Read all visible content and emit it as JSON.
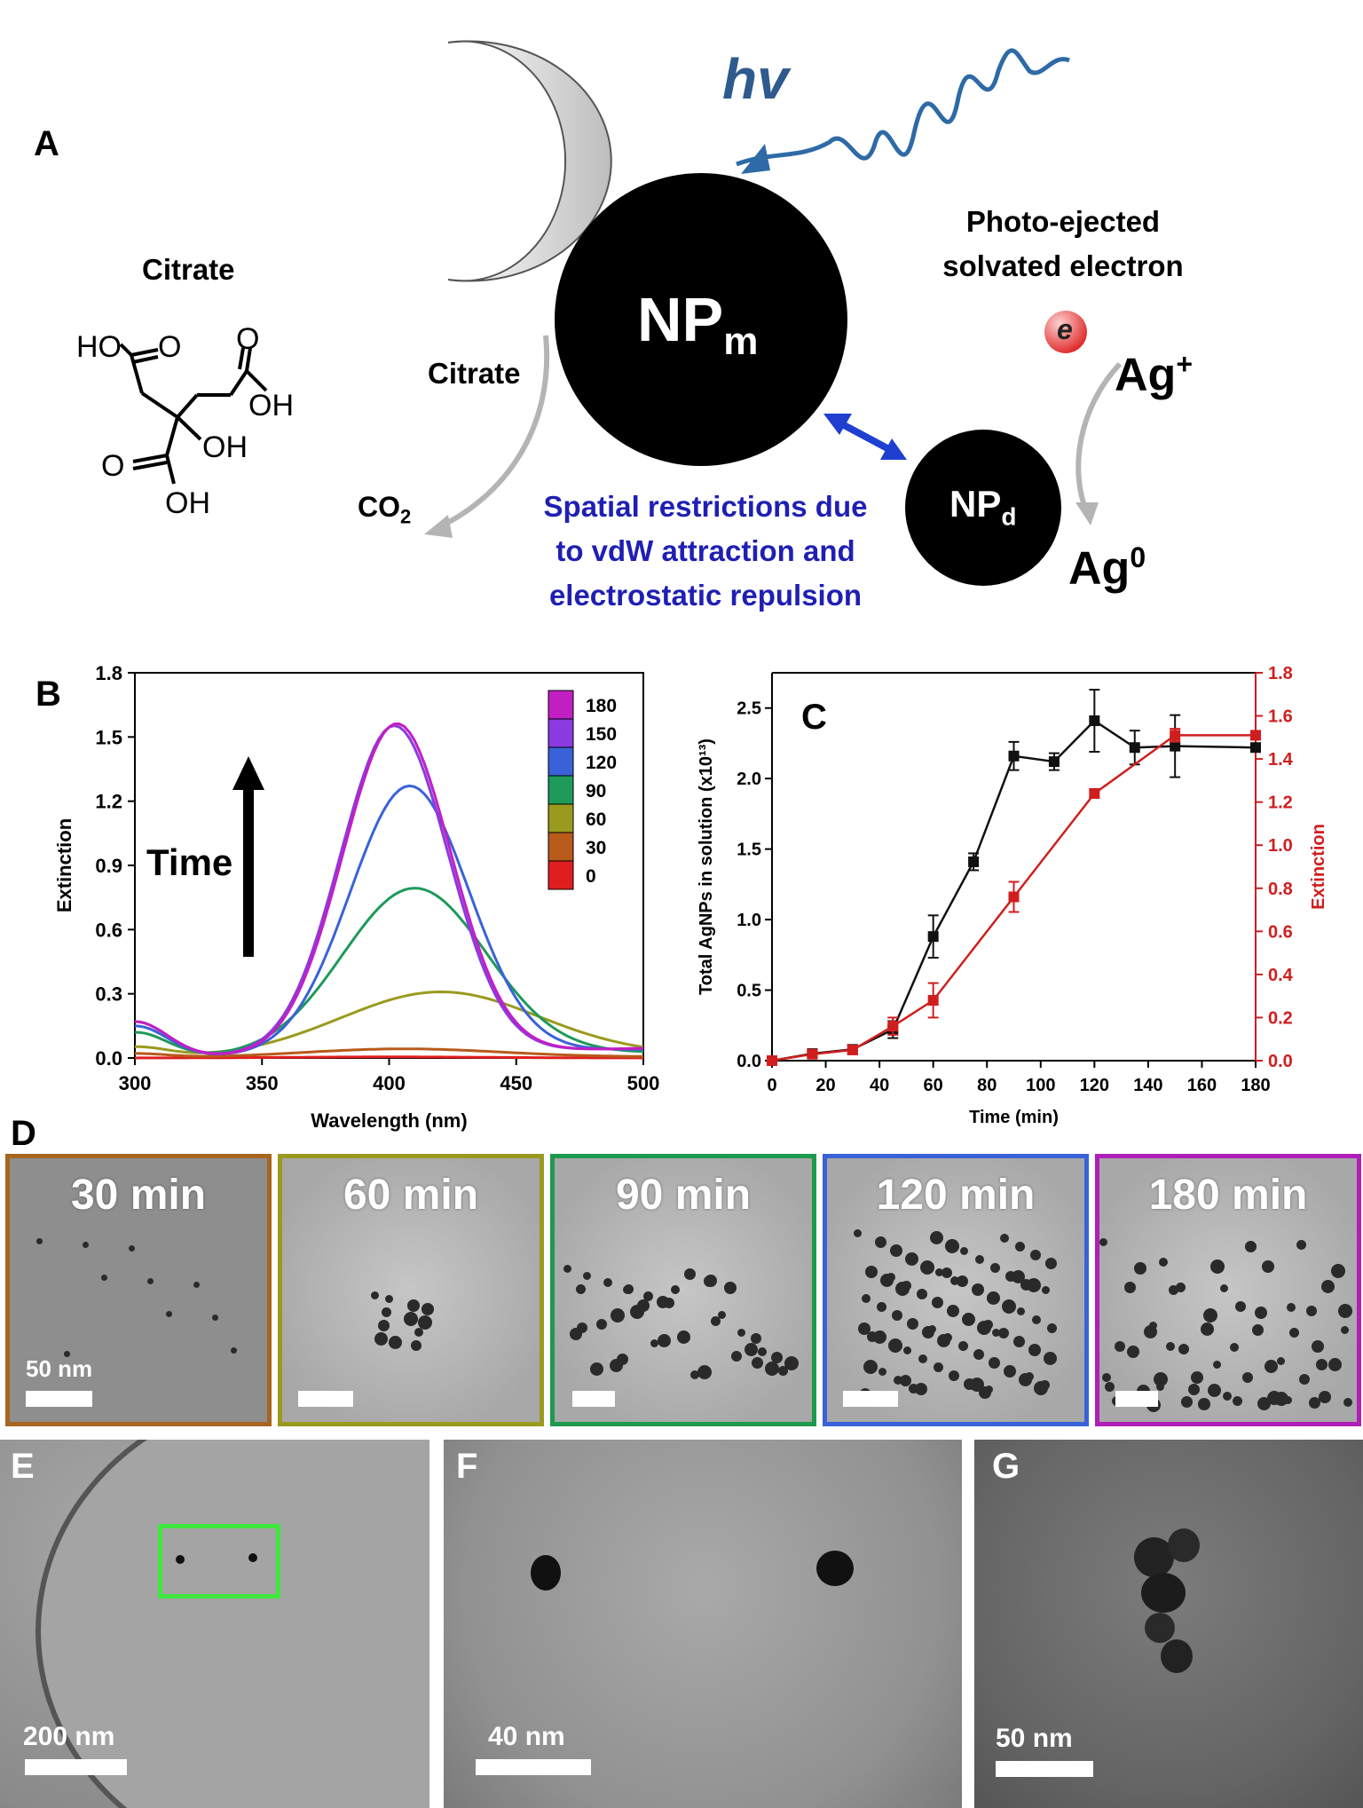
{
  "panelA": {
    "letter": "A",
    "hv": "hv",
    "citrate_title": "Citrate",
    "molecule_labels": {
      "ho_top": "HO",
      "o1": "O",
      "o2": "O",
      "oh_right": "OH",
      "oh_mid": "OH",
      "o_left": "O",
      "oh_bottom": "OH"
    },
    "np_m": "NP",
    "np_m_sub": "m",
    "np_d": "NP",
    "np_d_sub": "d",
    "photo_line1": "Photo-ejected",
    "photo_line2": "solvated electron",
    "electron": "e",
    "ag_plus": "Ag",
    "ag_plus_sup": "+",
    "ag_zero": "Ag",
    "ag_zero_sup": "0",
    "citrate_arrow": "Citrate",
    "co2": "CO",
    "co2_sub": "2",
    "restriction_line1": "Spatial restrictions due",
    "restriction_line2": "to vdW attraction and",
    "restriction_line3": "electrostatic repulsion",
    "colors": {
      "wave": "#2e6aa6",
      "restriction_text": "#1f1fb4",
      "double_arrow": "#1f3fd0",
      "electron": "#e84545"
    }
  },
  "panelB": {
    "letter": "B",
    "time_label": "Time"
  },
  "panelC": {
    "letter": "C"
  },
  "panelD": {
    "letter": "D",
    "tiles": [
      {
        "label": "30 min",
        "border": "#a8651e",
        "scale": "50 nm"
      },
      {
        "label": "60 min",
        "border": "#9a9a1e",
        "scale": ""
      },
      {
        "label": "90 min",
        "border": "#1e9a4e",
        "scale": ""
      },
      {
        "label": "120 min",
        "border": "#3a62d8",
        "scale": ""
      },
      {
        "label": "180 min",
        "border": "#b01eb8",
        "scale": ""
      }
    ]
  },
  "panelE": {
    "letter": "E",
    "scale": "200 nm"
  },
  "panelF": {
    "letter": "F",
    "scale": "40 nm"
  },
  "panelG": {
    "letter": "G",
    "scale": "50 nm"
  },
  "chart_data": [
    {
      "type": "line",
      "panel": "B",
      "xlabel": "Wavelength (nm)",
      "ylabel": "Extinction",
      "xlim": [
        300,
        500
      ],
      "ylim": [
        0,
        1.8
      ],
      "xticks": [
        "300",
        "350",
        "400",
        "450",
        "500"
      ],
      "yticks": [
        "0.0",
        "0.3",
        "0.6",
        "0.9",
        "1.2",
        "1.5",
        "1.8"
      ],
      "legend_title": "",
      "legend": [
        "180",
        "150",
        "120",
        "90",
        "60",
        "30",
        "0"
      ],
      "legend_colors": [
        "#c21fc2",
        "#8a3ae0",
        "#3a62d8",
        "#1e9a5a",
        "#9a9a1e",
        "#b85a1a",
        "#e01e1e"
      ],
      "series": [
        {
          "name": "0",
          "color": "#e01e1e",
          "peak": 0.005,
          "center": 400,
          "width": 55,
          "base300": 0.0,
          "min": 0.0
        },
        {
          "name": "30",
          "color": "#b85a1a",
          "peak": 0.04,
          "center": 405,
          "width": 55,
          "base300": 0.02,
          "min": 0.01
        },
        {
          "name": "60",
          "color": "#9a9a1e",
          "peak": 0.3,
          "center": 420,
          "width": 55,
          "base300": 0.05,
          "min": 0.03
        },
        {
          "name": "90",
          "color": "#1e9a5a",
          "peak": 0.78,
          "center": 410,
          "width": 40,
          "base300": 0.12,
          "min": 0.05
        },
        {
          "name": "120",
          "color": "#3a62d8",
          "peak": 1.25,
          "center": 408,
          "width": 33,
          "base300": 0.15,
          "min": 0.08
        },
        {
          "name": "150",
          "color": "#8a3ae0",
          "peak": 1.53,
          "center": 402,
          "width": 30,
          "base300": 0.17,
          "min": 0.09
        },
        {
          "name": "180",
          "color": "#c21fc2",
          "peak": 1.54,
          "center": 403,
          "width": 30,
          "base300": 0.17,
          "min": 0.09
        }
      ]
    },
    {
      "type": "line",
      "panel": "C",
      "xlabel": "Time (min)",
      "ylabel": "Total AgNPs in solution (x10¹³)",
      "y2label": "Extinction",
      "xlim": [
        0,
        180
      ],
      "ylim": [
        0,
        2.75
      ],
      "y2lim": [
        0,
        1.8
      ],
      "xticks": [
        "0",
        "20",
        "40",
        "60",
        "80",
        "100",
        "120",
        "140",
        "160",
        "180"
      ],
      "yticks": [
        "0.0",
        "0.5",
        "1.0",
        "1.5",
        "2.0",
        "2.5"
      ],
      "y2ticks": [
        "0.0",
        "0.2",
        "0.4",
        "0.6",
        "0.8",
        "1.0",
        "1.2",
        "1.4",
        "1.6",
        "1.8"
      ],
      "series": [
        {
          "name": "Total AgNPs",
          "axis": "left",
          "color": "#111111",
          "x": [
            0,
            15,
            30,
            45,
            60,
            75,
            90,
            105,
            120,
            135,
            150,
            180
          ],
          "y": [
            0.0,
            0.05,
            0.08,
            0.22,
            0.88,
            1.41,
            2.16,
            2.12,
            2.41,
            2.22,
            2.23,
            2.22
          ],
          "err": [
            0.0,
            0.02,
            0.03,
            0.06,
            0.15,
            0.06,
            0.1,
            0.06,
            0.22,
            0.12,
            0.22,
            0.0
          ]
        },
        {
          "name": "Extinction",
          "axis": "right",
          "color": "#d01e1e",
          "x": [
            0,
            15,
            30,
            45,
            60,
            90,
            120,
            150,
            180
          ],
          "y": [
            0.0,
            0.03,
            0.05,
            0.16,
            0.28,
            0.76,
            1.24,
            1.51,
            1.51
          ],
          "err": [
            0.0,
            0.01,
            0.02,
            0.04,
            0.08,
            0.07,
            0.02,
            0.03,
            0.02
          ]
        }
      ]
    }
  ]
}
